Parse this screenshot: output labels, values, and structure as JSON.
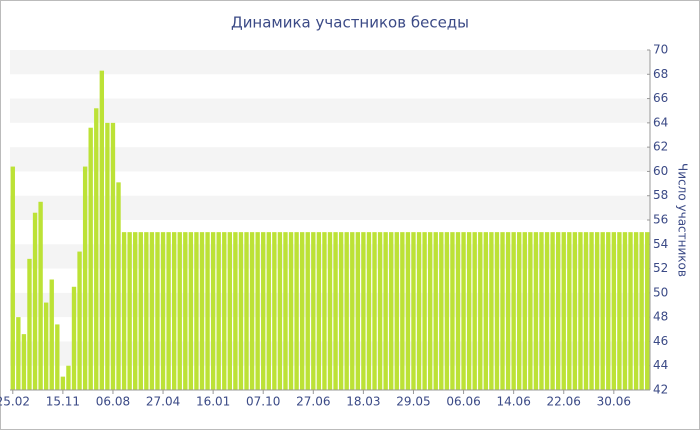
{
  "chart_data": {
    "type": "bar",
    "title": "Динамика участников беседы",
    "y_label": "Число участников",
    "categories": [
      "25.02",
      null,
      null,
      null,
      null,
      null,
      null,
      null,
      null,
      "15.11",
      null,
      null,
      null,
      null,
      null,
      null,
      null,
      null,
      "06.08",
      null,
      null,
      null,
      null,
      null,
      null,
      null,
      null,
      "27.04",
      null,
      null,
      null,
      null,
      null,
      null,
      null,
      null,
      "16.01",
      null,
      null,
      null,
      null,
      null,
      null,
      null,
      null,
      "07.10",
      null,
      null,
      null,
      null,
      null,
      null,
      null,
      null,
      "27.06",
      null,
      null,
      null,
      null,
      null,
      null,
      null,
      null,
      "18.03",
      null,
      null,
      null,
      null,
      null,
      null,
      null,
      null,
      "29.05",
      null,
      null,
      null,
      null,
      null,
      null,
      null,
      null,
      "06.06",
      null,
      null,
      null,
      null,
      null,
      null,
      null,
      null,
      "14.06",
      null,
      null,
      null,
      null,
      null,
      null,
      null,
      null,
      "22.06",
      null,
      null,
      null,
      null,
      null,
      null,
      null,
      null,
      "30.06",
      null,
      null,
      null,
      null,
      null,
      null
    ],
    "values": [
      60.4,
      48,
      46.6,
      52.8,
      56.6,
      57.5,
      49.2,
      51.1,
      47.4,
      43.1,
      44,
      50.5,
      53.4,
      60.4,
      63.6,
      65.2,
      68.3,
      64,
      64,
      59.1,
      55,
      55,
      55,
      55,
      55,
      55,
      55,
      55,
      55,
      55,
      55,
      55,
      55,
      55,
      55,
      55,
      55,
      55,
      55,
      55,
      55,
      55,
      55,
      55,
      55,
      55,
      55,
      55,
      55,
      55,
      55,
      55,
      55,
      55,
      55,
      55,
      55,
      55,
      55,
      55,
      55,
      55,
      55,
      55,
      55,
      55,
      55,
      55,
      55,
      55,
      55,
      55,
      55,
      55,
      55,
      55,
      55,
      55,
      55,
      55,
      55,
      55,
      55,
      55,
      55,
      55,
      55,
      55,
      55,
      55,
      55,
      55,
      55,
      55,
      55,
      55,
      55,
      55,
      55,
      55,
      55,
      55,
      55,
      55,
      55,
      55,
      55,
      55,
      55,
      55,
      55,
      55,
      55,
      55,
      55
    ],
    "color": "#bce236",
    "ylim": [
      42,
      70
    ],
    "yticks": [
      42,
      44,
      46,
      48,
      50,
      52,
      54,
      56,
      58,
      60,
      62,
      64,
      66,
      68,
      70
    ],
    "grid": true
  }
}
